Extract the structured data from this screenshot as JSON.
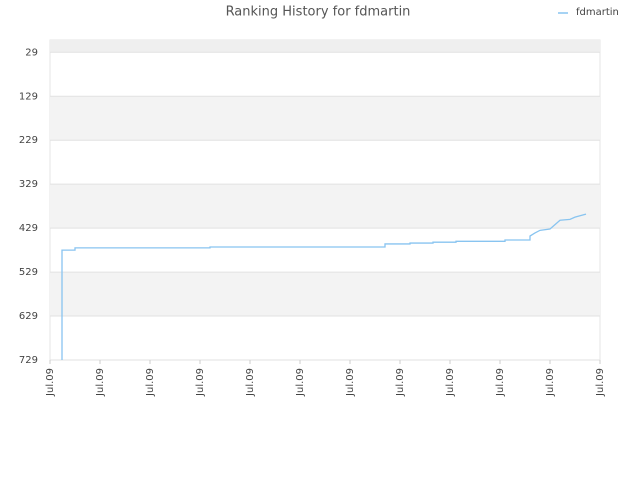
{
  "chart_data": {
    "type": "line",
    "title": "Ranking History for fdmartin",
    "inverted_y": true,
    "ylim": [
      1,
      729
    ],
    "yticks": [
      29,
      129,
      229,
      329,
      429,
      529,
      629,
      729
    ],
    "xlim": [
      0,
      11
    ],
    "xticks": [
      {
        "value": 0,
        "label": "Jul.09"
      },
      {
        "value": 1,
        "label": "Jul.09"
      },
      {
        "value": 2,
        "label": "Jul.09"
      },
      {
        "value": 3,
        "label": "Jul.09"
      },
      {
        "value": 4,
        "label": "Jul.09"
      },
      {
        "value": 5,
        "label": "Jul.09"
      },
      {
        "value": 6,
        "label": "Jul.09"
      },
      {
        "value": 7,
        "label": "Jul.09"
      },
      {
        "value": 8,
        "label": "Jul.09"
      },
      {
        "value": 9,
        "label": "Jul.09"
      },
      {
        "value": 10,
        "label": "Jul.09"
      },
      {
        "value": 11,
        "label": "Jul.09"
      }
    ],
    "grid": true,
    "legend": "top-right",
    "series": [
      {
        "name": "fdmartin",
        "color": "#88c4f0",
        "x": [
          0.24,
          0.24,
          0.5,
          0.5,
          3.2,
          3.2,
          6.7,
          6.7,
          7.2,
          7.2,
          7.66,
          7.66,
          8.12,
          8.12,
          9.1,
          9.1,
          9.6,
          9.6,
          9.7,
          9.8,
          10,
          10.2,
          10.4,
          10.5,
          10.72
        ],
        "values": [
          729,
          479,
          479,
          474,
          474,
          472,
          472,
          465,
          465,
          463,
          463,
          461,
          461,
          459,
          459,
          456,
          456,
          447,
          440,
          434,
          431,
          411,
          409,
          404,
          397
        ]
      }
    ]
  }
}
